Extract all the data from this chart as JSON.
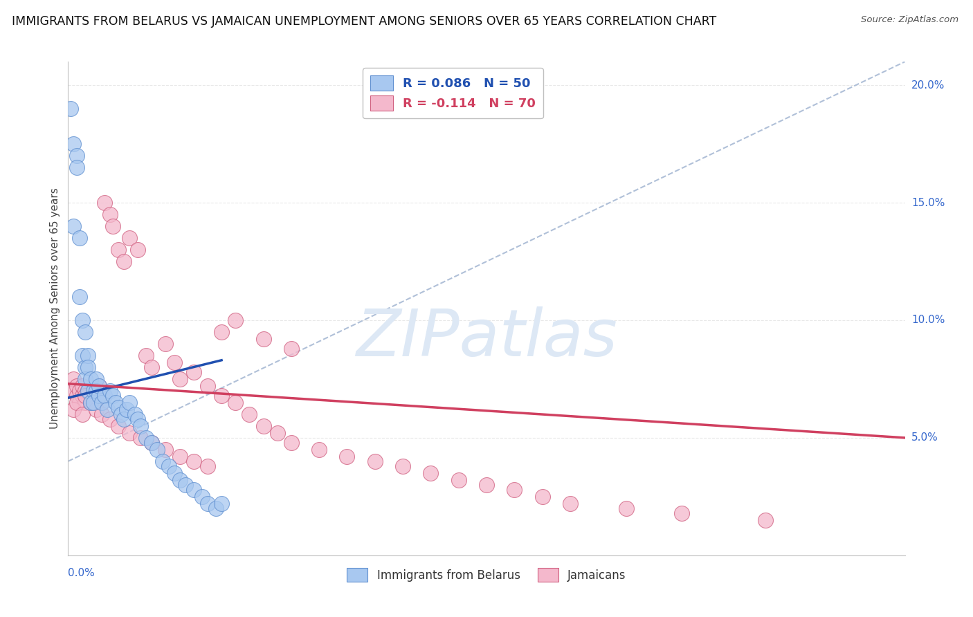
{
  "title": "IMMIGRANTS FROM BELARUS VS JAMAICAN UNEMPLOYMENT AMONG SENIORS OVER 65 YEARS CORRELATION CHART",
  "source": "Source: ZipAtlas.com",
  "ylabel": "Unemployment Among Seniors over 65 years",
  "xmin": 0.0,
  "xmax": 0.3,
  "ymin": 0.0,
  "ymax": 0.21,
  "yticks": [
    0.05,
    0.1,
    0.15,
    0.2
  ],
  "color_belarus": "#a8c8f0",
  "color_jamaica": "#f4b8cc",
  "edge_color_belarus": "#6090d0",
  "edge_color_jamaica": "#d06080",
  "trend_color_belarus": "#2050b0",
  "trend_color_jamaica": "#d04060",
  "dashed_color": "#b0c0d8",
  "watermark": "ZIPatlas",
  "watermark_color": "#dde8f5",
  "background_color": "#ffffff",
  "grid_color": "#e8e8e8",
  "title_fontsize": 12.5,
  "legend1_label": "R = 0.086   N = 50",
  "legend2_label": "R = -0.114   N = 70",
  "bottom_label1": "Immigrants from Belarus",
  "bottom_label2": "Jamaicans",
  "belarus_x": [
    0.001,
    0.002,
    0.002,
    0.003,
    0.003,
    0.004,
    0.004,
    0.005,
    0.005,
    0.006,
    0.006,
    0.006,
    0.007,
    0.007,
    0.007,
    0.008,
    0.008,
    0.009,
    0.009,
    0.01,
    0.01,
    0.011,
    0.011,
    0.012,
    0.013,
    0.014,
    0.015,
    0.016,
    0.017,
    0.018,
    0.019,
    0.02,
    0.021,
    0.022,
    0.024,
    0.025,
    0.026,
    0.028,
    0.03,
    0.032,
    0.034,
    0.036,
    0.038,
    0.04,
    0.042,
    0.045,
    0.048,
    0.05,
    0.053,
    0.055
  ],
  "belarus_y": [
    0.19,
    0.175,
    0.14,
    0.17,
    0.165,
    0.135,
    0.11,
    0.1,
    0.085,
    0.095,
    0.08,
    0.075,
    0.085,
    0.08,
    0.07,
    0.075,
    0.065,
    0.07,
    0.065,
    0.075,
    0.07,
    0.068,
    0.072,
    0.065,
    0.068,
    0.062,
    0.07,
    0.068,
    0.065,
    0.063,
    0.06,
    0.058,
    0.062,
    0.065,
    0.06,
    0.058,
    0.055,
    0.05,
    0.048,
    0.045,
    0.04,
    0.038,
    0.035,
    0.032,
    0.03,
    0.028,
    0.025,
    0.022,
    0.02,
    0.022
  ],
  "jamaica_x": [
    0.001,
    0.002,
    0.003,
    0.003,
    0.004,
    0.004,
    0.005,
    0.005,
    0.006,
    0.006,
    0.007,
    0.007,
    0.008,
    0.009,
    0.01,
    0.011,
    0.012,
    0.013,
    0.015,
    0.016,
    0.018,
    0.02,
    0.022,
    0.025,
    0.028,
    0.03,
    0.035,
    0.038,
    0.04,
    0.045,
    0.05,
    0.055,
    0.06,
    0.065,
    0.07,
    0.075,
    0.08,
    0.09,
    0.1,
    0.11,
    0.12,
    0.13,
    0.14,
    0.15,
    0.16,
    0.17,
    0.18,
    0.2,
    0.22,
    0.25,
    0.002,
    0.003,
    0.005,
    0.006,
    0.008,
    0.01,
    0.012,
    0.015,
    0.018,
    0.022,
    0.026,
    0.03,
    0.035,
    0.04,
    0.045,
    0.05,
    0.055,
    0.06,
    0.07,
    0.08
  ],
  "jamaica_y": [
    0.07,
    0.075,
    0.068,
    0.072,
    0.065,
    0.07,
    0.068,
    0.072,
    0.07,
    0.065,
    0.07,
    0.068,
    0.065,
    0.07,
    0.068,
    0.072,
    0.065,
    0.15,
    0.145,
    0.14,
    0.13,
    0.125,
    0.135,
    0.13,
    0.085,
    0.08,
    0.09,
    0.082,
    0.075,
    0.078,
    0.072,
    0.068,
    0.065,
    0.06,
    0.055,
    0.052,
    0.048,
    0.045,
    0.042,
    0.04,
    0.038,
    0.035,
    0.032,
    0.03,
    0.028,
    0.025,
    0.022,
    0.02,
    0.018,
    0.015,
    0.062,
    0.065,
    0.06,
    0.068,
    0.065,
    0.062,
    0.06,
    0.058,
    0.055,
    0.052,
    0.05,
    0.048,
    0.045,
    0.042,
    0.04,
    0.038,
    0.095,
    0.1,
    0.092,
    0.088
  ]
}
